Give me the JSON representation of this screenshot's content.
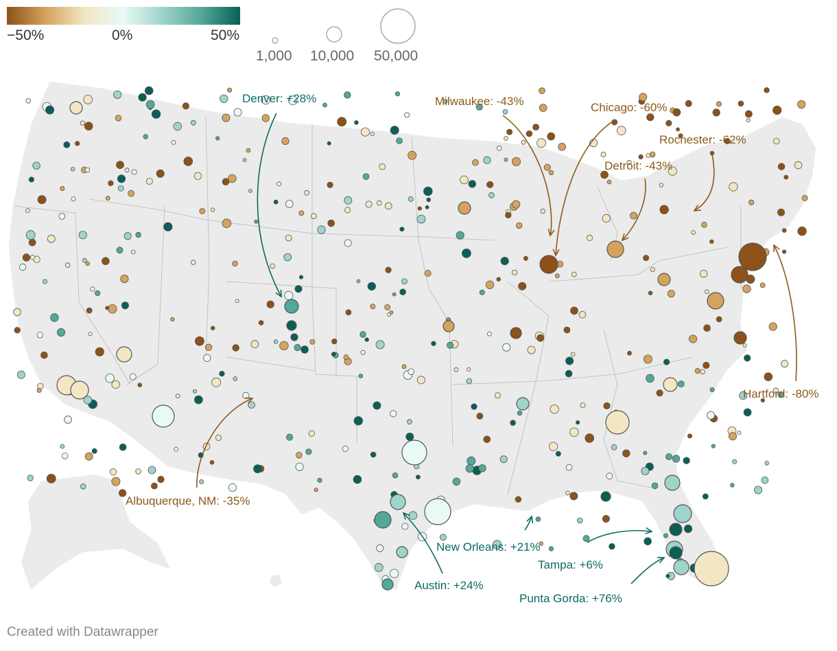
{
  "legend": {
    "scale": [
      "−50%",
      "0%",
      "50%"
    ],
    "sizes": [
      "1,000",
      "10,000",
      "50,000"
    ],
    "colors": [
      "#8c5219",
      "#d4a35d",
      "#f3e6c3",
      "#e9f9f6",
      "#9ed4c9",
      "#53a89a",
      "#0b5f56"
    ]
  },
  "annotations": [
    {
      "label": "Denver: +28%",
      "color": "#0b6b62"
    },
    {
      "label": "Milwaukee: -43%",
      "color": "#8c5a19"
    },
    {
      "label": "Chicago: -60%",
      "color": "#8c5a19"
    },
    {
      "label": "Rochester: -62%",
      "color": "#8c5a19"
    },
    {
      "label": "Detroit: -43%",
      "color": "#8c5a19"
    },
    {
      "label": "Hartford: -80%",
      "color": "#8c5a19"
    },
    {
      "label": "Albuquerque, NM: -35%",
      "color": "#8c5a19"
    },
    {
      "label": "New Orleans: +21%",
      "color": "#0b6b62"
    },
    {
      "label": "Austin: +24%",
      "color": "#0b6b62"
    },
    {
      "label": "Tampa: +6%",
      "color": "#0b6b62"
    },
    {
      "label": "Punta Gorda: +76%",
      "color": "#0b6b62"
    }
  ],
  "footer": "Created with Datawrapper"
}
